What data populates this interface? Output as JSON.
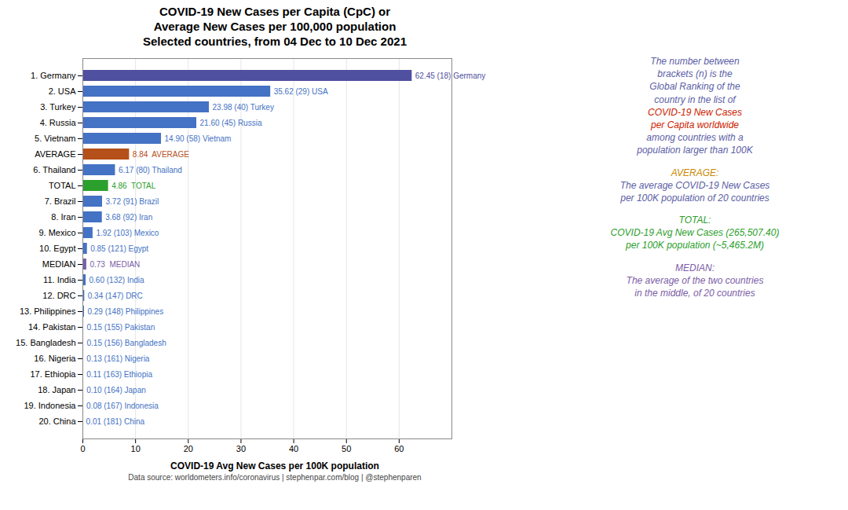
{
  "chart_data": {
    "type": "bar",
    "orientation": "horizontal",
    "title": "COVID-19 New Cases per Capita (CpC) or\nAverage New Cases per 100,000 population\nSelected countries, from 04 Dec to 10 Dec 2021",
    "xlabel": "COVID-19 Avg New Cases per 100K population",
    "footnote": "Data source: worldometers.info/coronavirus | stephenpar.com/blog | @stephenparen",
    "categories": [
      "1. Germany",
      "2. USA",
      "3. Turkey",
      "4. Russia",
      "5. Vietnam",
      "AVERAGE",
      "6. Thailand",
      "TOTAL",
      "7. Brazil",
      "8. Iran",
      "9. Mexico",
      "10. Egypt",
      "MEDIAN",
      "11. India",
      "12. DRC",
      "13. Philippines",
      "14. Pakistan",
      "15. Bangladesh",
      "16. Nigeria",
      "17. Ethiopia",
      "18. Japan",
      "19. Indonesia",
      "20. China"
    ],
    "values": [
      62.45,
      35.62,
      23.98,
      21.6,
      14.9,
      8.84,
      6.17,
      4.86,
      3.72,
      3.68,
      1.92,
      0.85,
      0.73,
      0.6,
      0.34,
      0.29,
      0.15,
      0.15,
      0.13,
      0.11,
      0.1,
      0.08,
      0.01
    ],
    "value_labels": [
      "62.45 (18) Germany",
      "35.62 (29) USA",
      "23.98 (40) Turkey",
      "21.60 (45) Russia",
      "14.90 (58) Vietnam",
      "8.84  AVERAGE",
      "6.17 (80) Thailand",
      "4.86  TOTAL",
      "3.72 (91) Brazil",
      "3.68 (92) Iran",
      "1.92 (103) Mexico",
      "0.85 (121) Egypt",
      "0.73  MEDIAN",
      "0.60 (132) India",
      "0.34 (147) DRC",
      "0.29 (148) Philippines",
      "0.15 (155) Pakistan",
      "0.15 (156) Bangladesh",
      "0.13 (161) Nigeria",
      "0.11 (163) Ethiopia",
      "0.10 (164) Japan",
      "0.08 (167) Indonesia",
      "0.01 (181) China"
    ],
    "data_labels": true,
    "colors": [
      "#5050a0",
      "#4472c4",
      "#4472c4",
      "#4472c4",
      "#4472c4",
      "#b5501a",
      "#4472c4",
      "#2ca02c",
      "#4472c4",
      "#4472c4",
      "#4472c4",
      "#4472c4",
      "#7b5ea7",
      "#4472c4",
      "#4472c4",
      "#4472c4",
      "#4472c4",
      "#4472c4",
      "#4472c4",
      "#4472c4",
      "#4472c4",
      "#4472c4",
      "#4472c4"
    ],
    "xlim": [
      0,
      70
    ],
    "xticks": [
      0,
      10,
      20,
      30,
      40,
      50,
      60
    ],
    "grid": true,
    "annotations": [
      [
        {
          "text": "The number between",
          "color": "#5b5ea6"
        },
        {
          "text": "brackets (n) is the",
          "color": "#5b5ea6"
        },
        {
          "text": "Global Ranking of the",
          "color": "#5b5ea6"
        },
        {
          "text": "country in the list of",
          "color": "#5b5ea6"
        },
        {
          "text": "COVID-19 New Cases",
          "color": "#cc2200"
        },
        {
          "text": "per Capita worldwide",
          "color": "#cc2200"
        },
        {
          "text": "among countries with a",
          "color": "#5b5ea6"
        },
        {
          "text": "population larger than 100K",
          "color": "#5b5ea6"
        }
      ],
      [
        {
          "text": "AVERAGE:",
          "color": "#cc8800"
        },
        {
          "text": "The average COVID-19 New Cases",
          "color": "#5b5ea6"
        },
        {
          "text": "per 100K population of 20 countries",
          "color": "#5b5ea6"
        }
      ],
      [
        {
          "text": "TOTAL:",
          "color": "#2ca02c"
        },
        {
          "text": "COVID-19 Avg New Cases (265,507.40)",
          "color": "#2ca02c"
        },
        {
          "text": "per 100K population (~5,465.2M)",
          "color": "#2ca02c"
        }
      ],
      [
        {
          "text": "MEDIAN:",
          "color": "#7b5ea7"
        },
        {
          "text": "The average of the two countries",
          "color": "#7b5ea7"
        },
        {
          "text": "in the middle, of 20 countries",
          "color": "#7b5ea7"
        }
      ]
    ]
  }
}
